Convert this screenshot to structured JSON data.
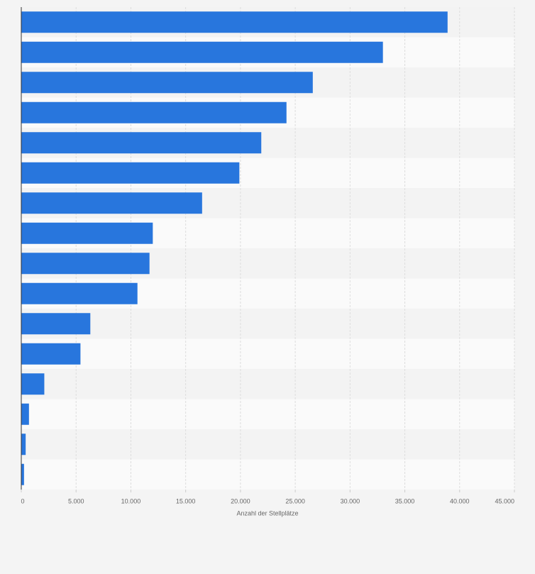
{
  "chart_data": {
    "type": "bar",
    "orientation": "horizontal",
    "x_label": "Anzahl der Stellplätze",
    "categories": [
      null,
      null,
      null,
      null,
      null,
      null,
      null,
      null,
      null,
      null,
      null,
      null,
      null,
      null,
      null,
      null
    ],
    "values": [
      38900,
      33000,
      26600,
      24200,
      21900,
      19900,
      16500,
      12000,
      11700,
      10600,
      6300,
      5400,
      2100,
      700,
      400,
      250
    ],
    "color": "#2876dd",
    "xlim": [
      0,
      45000
    ],
    "xticks": [
      0,
      {
        "value": 5000,
        "label": "5.000"
      },
      {
        "value": 10000,
        "label": "10.000"
      },
      {
        "value": 15000,
        "label": "15.000"
      },
      {
        "value": 20000,
        "label": "20.000"
      },
      {
        "value": 25000,
        "label": "25.000"
      },
      {
        "value": 30000,
        "label": "30.000"
      },
      {
        "value": 35000,
        "label": "35.000"
      },
      {
        "value": 40000,
        "label": "40.000"
      },
      {
        "value": 45000,
        "label": "45.000"
      }
    ],
    "grid": true
  }
}
